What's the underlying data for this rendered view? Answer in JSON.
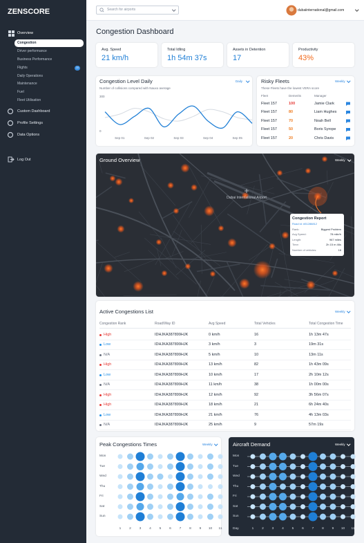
{
  "sidebar": {
    "logo": "ZENSCORE",
    "overview": "Overview",
    "sub_items": [
      "Congestion",
      "Driver performance",
      "Business Performance",
      "Flights",
      "Daily Operations",
      "Maintenance",
      "Fuel",
      "Fleet Utilisation"
    ],
    "flights_badge": 10,
    "items": [
      "Custom Dashboard",
      "Profile Settings",
      "Data Options"
    ],
    "logout": "Log Out"
  },
  "header": {
    "search_placeholder": "Search for airports",
    "email": "dubaiinternational@gmail.com"
  },
  "page_title": "Congestion Dashboard",
  "kpis": [
    {
      "label": "Avg. Speed",
      "value": "21 km/h",
      "color": "#1f7fd6"
    },
    {
      "label": "Total Idling",
      "value": "1h 54m 37s",
      "color": "#1f7fd6"
    },
    {
      "label": "Assets in Detention",
      "value": "17",
      "color": "#1f7fd6"
    },
    {
      "label": "Productivity",
      "value": "43%",
      "color": "#f26b1d"
    }
  ],
  "congestion_chart": {
    "type": "line",
    "title": "Congestion Level Daily",
    "subtitle": "Number of collisions compared with Nauxo average",
    "period": "Daily",
    "categories": [
      null,
      "Sep 01",
      null,
      "Sep 02",
      null,
      "Sep 03",
      null,
      "Sep 04",
      null,
      "Sep 05",
      null
    ],
    "ylim": [
      0,
      300
    ],
    "yticks": [
      0,
      300
    ],
    "series": [
      {
        "color": "#1f7fd6",
        "values": [
          170,
          60,
          130,
          200,
          40,
          150,
          220,
          90,
          30,
          170,
          70
        ]
      },
      {
        "color": "#d5dae1",
        "values": [
          120,
          150,
          200,
          170,
          110,
          90,
          130,
          190,
          170,
          120,
          100
        ]
      }
    ]
  },
  "risky_fleets": {
    "title": "Risky Fleets",
    "period": "Weekly",
    "subtitle": "These Fleets have the lowest VERA score",
    "headers": [
      "Fleet",
      "Demerits",
      "Manager"
    ],
    "rows": [
      [
        "Fleet 157",
        100,
        "Jamie Clark"
      ],
      [
        "Fleet 157",
        80,
        "Liam Hughes"
      ],
      [
        "Fleet 157",
        70,
        "Noah Bell"
      ],
      [
        "Fleet 157",
        50,
        "Boris Syrope"
      ],
      [
        "Fleet 157",
        20,
        "Chris Davis"
      ]
    ],
    "demerit_colors": [
      "#e53935",
      "#ef7d22",
      "#ef7d22",
      "#ef7d22",
      "#ef7d22"
    ]
  },
  "ground_overview": {
    "title": "Ground Overview",
    "period": "Weekly",
    "airport_label": "Dubai International Airport",
    "report": {
      "title": "Congestion Report",
      "road_id": "Road id: #51286812",
      "rows": [
        [
          "Rank:",
          "Biggest Problem"
        ],
        [
          "Avg Speed:",
          "78 mile/h"
        ],
        [
          "Length:",
          "967 miles"
        ],
        [
          "Time:",
          "2h 15 m 46s"
        ],
        [
          "Number of vehicles:",
          "18"
        ]
      ]
    }
  },
  "active_congestions": {
    "title": "Active Congestions List",
    "period": "Weekly",
    "headers": [
      "Congestion Rank",
      "Road/Way ID",
      "Avg Speed",
      "Total Vehicles",
      "Total Congestion Time"
    ],
    "rows": [
      [
        "High",
        "IDHJKA387899HJK",
        "0 km/h",
        16,
        "1h 13m 47s"
      ],
      [
        "Low",
        "IDHJKA387899HJK",
        "3 km/h",
        3,
        "19m 31s"
      ],
      [
        "N/A",
        "IDHJKA387899HJK",
        "5 km/h",
        10,
        "13m 11s"
      ],
      [
        "High",
        "IDHJKA387899HJK",
        "13 km/h",
        82,
        "1h 43m 09s"
      ],
      [
        "Low",
        "IDHJKA387899HJK",
        "10 km/h",
        17,
        "2h 10m 12s"
      ],
      [
        "N/A",
        "IDHJKA387899HJK",
        "11 km/h",
        38,
        "1h 00m 00s"
      ],
      [
        "High",
        "IDHJKA387899HJK",
        "12 km/h",
        92,
        "3h 56m 07s"
      ],
      [
        "High",
        "IDHJKA387899HJK",
        "18 km/h",
        21,
        "6h 24m 40s"
      ],
      [
        "Low",
        "IDHJKA387899HJK",
        "21 km/h",
        76,
        "4h 13m 03s"
      ],
      [
        "N/A",
        "IDHJKA387899HJK",
        "25 km/h",
        9,
        "57m 19s"
      ]
    ],
    "rank_colors": [
      "#e53935",
      "#1f8ee6",
      "#6b7280",
      "#e53935",
      "#1f8ee6",
      "#6b7280",
      "#e53935",
      "#e53935",
      "#1f8ee6",
      "#6b7280"
    ]
  },
  "peak_congestions": {
    "title": "Peak Congestions Times",
    "period": "Weekly",
    "days": [
      "Mon",
      "Tue",
      "Wed",
      "Thu",
      "Fri",
      "Sat",
      "Sun"
    ],
    "columns": [
      1,
      2,
      3,
      4,
      5,
      6,
      7,
      8,
      9,
      10,
      11
    ],
    "values": [
      [
        1,
        2,
        4,
        2,
        1,
        2,
        4,
        2,
        1,
        2,
        1
      ],
      [
        1,
        2,
        3,
        2,
        1,
        2,
        4,
        2,
        1,
        2,
        1
      ],
      [
        1,
        2,
        4,
        2,
        2,
        1,
        4,
        2,
        1,
        2,
        1
      ],
      [
        1,
        2,
        3,
        2,
        1,
        2,
        4,
        2,
        1,
        1,
        1
      ],
      [
        1,
        2,
        4,
        2,
        1,
        2,
        3,
        2,
        1,
        2,
        1
      ],
      [
        1,
        2,
        3,
        2,
        1,
        2,
        4,
        2,
        1,
        2,
        1
      ],
      [
        1,
        2,
        4,
        2,
        1,
        2,
        4,
        2,
        1,
        2,
        1
      ]
    ]
  },
  "aircraft_demand": {
    "title": "Aircraft Demand",
    "period": "Weekly",
    "days": [
      "Mon",
      "Tue",
      "Wed",
      "Thu",
      "Fri",
      "Sat",
      "Sun"
    ],
    "columns": [
      1,
      2,
      3,
      4,
      5,
      6,
      7,
      8,
      9,
      10,
      11
    ],
    "day_label": "Day.",
    "values": [
      [
        1,
        2,
        3,
        3,
        2,
        1,
        4,
        2,
        2,
        1,
        1
      ],
      [
        1,
        2,
        3,
        3,
        2,
        1,
        4,
        2,
        2,
        1,
        1
      ],
      [
        1,
        2,
        3,
        3,
        2,
        1,
        4,
        2,
        2,
        1,
        1
      ],
      [
        1,
        2,
        3,
        2,
        2,
        1,
        4,
        2,
        2,
        1,
        1
      ],
      [
        1,
        2,
        3,
        3,
        2,
        1,
        4,
        2,
        2,
        1,
        1
      ],
      [
        1,
        2,
        3,
        3,
        2,
        1,
        4,
        2,
        2,
        1,
        1
      ],
      [
        1,
        2,
        3,
        3,
        2,
        1,
        4,
        2,
        2,
        1,
        1
      ]
    ]
  }
}
